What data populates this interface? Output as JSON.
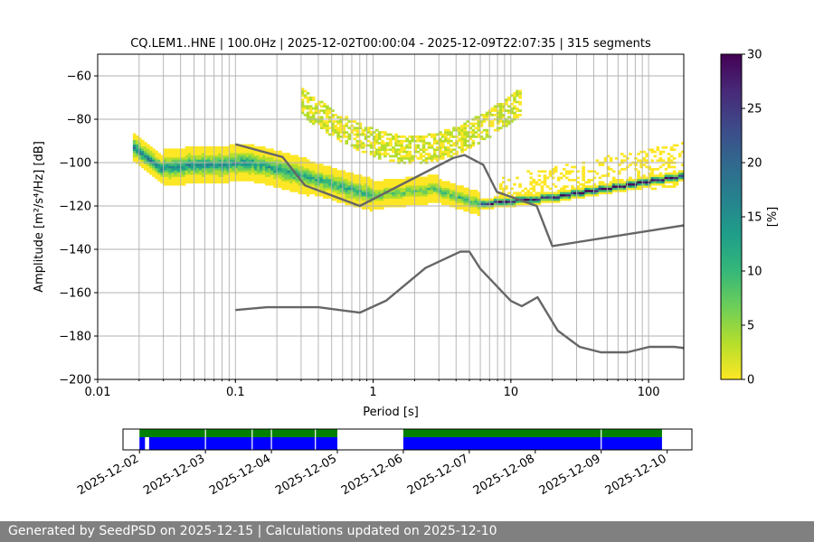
{
  "chart_data": {
    "type": "heatmap",
    "title": "CQ.LEM1..HNE | 100.0Hz | 2025-12-02T00:00:04 - 2025-12-09T22:07:35 | 315 segments",
    "xlabel": "Period [s]",
    "ylabel": "Amplitude [m²/s⁴/Hz] [dB]",
    "xscale": "log",
    "xlim": [
      0.01,
      180
    ],
    "ylim": [
      -200,
      -50
    ],
    "x_ticks": [
      {
        "value": 0.01,
        "label": "0.01"
      },
      {
        "value": 0.1,
        "label": "0.1"
      },
      {
        "value": 1,
        "label": "1"
      },
      {
        "value": 10,
        "label": "10"
      },
      {
        "value": 100,
        "label": "100"
      }
    ],
    "y_ticks": [
      -200,
      -180,
      -160,
      -140,
      -120,
      -100,
      -80,
      -60
    ],
    "grid": true,
    "colorbar": {
      "label": "[%]",
      "range": [
        0,
        30
      ],
      "ticks": [
        0,
        5,
        10,
        15,
        20,
        25,
        30
      ],
      "colors": [
        "#fde725",
        "#b5de2b",
        "#6ece58",
        "#35b779",
        "#1f9e89",
        "#26828e",
        "#31688e",
        "#3e4989",
        "#482878",
        "#440154"
      ]
    },
    "noise_models": [
      {
        "name": "NHNM",
        "color": "#666666",
        "points": [
          [
            0.1,
            -91.5
          ],
          [
            0.22,
            -97.4
          ],
          [
            0.32,
            -110.5
          ],
          [
            0.8,
            -120.0
          ],
          [
            3.8,
            -97.9
          ],
          [
            4.6,
            -96.5
          ],
          [
            6.3,
            -101.0
          ],
          [
            7.9,
            -113.5
          ],
          [
            15.4,
            -120.0
          ],
          [
            20.0,
            -138.5
          ],
          [
            354.8,
            -126.0
          ]
        ]
      },
      {
        "name": "NLNM",
        "color": "#666666",
        "points": [
          [
            0.1,
            -168.0
          ],
          [
            0.17,
            -166.7
          ],
          [
            0.4,
            -166.7
          ],
          [
            0.8,
            -169.2
          ],
          [
            1.24,
            -163.7
          ],
          [
            2.4,
            -148.6
          ],
          [
            4.3,
            -141.1
          ],
          [
            5.0,
            -141.1
          ],
          [
            6.0,
            -149.0
          ],
          [
            10.0,
            -163.8
          ],
          [
            12.0,
            -166.2
          ],
          [
            15.6,
            -162.1
          ],
          [
            21.9,
            -177.5
          ],
          [
            31.6,
            -185.0
          ],
          [
            45.0,
            -187.5
          ],
          [
            70.0,
            -187.5
          ],
          [
            101.0,
            -185.0
          ],
          [
            154.0,
            -185.0
          ],
          [
            328.0,
            -187.5
          ]
        ]
      }
    ],
    "psd_bands": [
      {
        "period": [
          0.018,
          0.03
        ],
        "center": [
          -93,
          -104
        ],
        "half_width": 6,
        "peak_percent": 18
      },
      {
        "period": [
          0.03,
          0.13
        ],
        "center": [
          -102,
          -100
        ],
        "half_width": 8,
        "peak_percent": 15
      },
      {
        "period": [
          0.13,
          0.35
        ],
        "center": [
          -100,
          -107
        ],
        "half_width": 8,
        "peak_percent": 13
      },
      {
        "period": [
          0.35,
          1.0
        ],
        "center": [
          -107,
          -115
        ],
        "half_width": 7,
        "peak_percent": 12
      },
      {
        "period": [
          1.0,
          3.0
        ],
        "center": [
          -115,
          -112
        ],
        "half_width": 6,
        "peak_percent": 8
      },
      {
        "period": [
          3.0,
          6.0
        ],
        "center": [
          -113,
          -119
        ],
        "half_width": 5,
        "peak_percent": 10
      },
      {
        "period": [
          6.0,
          20.0
        ],
        "center": [
          -119,
          -116
        ],
        "half_width": 2,
        "peak_percent": 25
      },
      {
        "period": [
          20.0,
          180.0
        ],
        "center": [
          -116,
          -106
        ],
        "half_width": 2,
        "peak_percent": 28
      }
    ],
    "psd_arc": {
      "period": [
        0.3,
        12.0
      ],
      "peak": -94,
      "half_width": 6,
      "percent": 3
    },
    "psd_scatter_bounds": {
      "period": [
        8.0,
        180.0
      ],
      "top": [
        -107,
        -90
      ],
      "bottom": [
        -120,
        -110
      ],
      "percent": 1
    },
    "data_availability": {
      "x_ticks": [
        "2025-12-02",
        "2025-12-03",
        "2025-12-04",
        "2025-12-05",
        "2025-12-06",
        "2025-12-07",
        "2025-12-08",
        "2025-12-09",
        "2025-12-10"
      ],
      "range": [
        "2025-12-01T18:00",
        "2025-12-10T09:00"
      ],
      "data_color": "#0000ff",
      "coverage_color": "#008000",
      "data_segments": [
        [
          "2025-12-02T00:00",
          "2025-12-02T02:00"
        ],
        [
          "2025-12-02T03:30",
          "2025-12-05T00:00"
        ],
        [
          "2025-12-06T00:00",
          "2025-12-09T22:07"
        ]
      ],
      "coverage_segments": [
        [
          "2025-12-02T00:00",
          "2025-12-05T00:00"
        ],
        [
          "2025-12-06T00:00",
          "2025-12-09T22:07"
        ]
      ],
      "gaps": [
        "2025-12-03T00:00",
        "2025-12-03T17:00",
        "2025-12-04T00:00",
        "2025-12-04T16:00",
        "2025-12-09T00:00"
      ]
    }
  },
  "footer": "Generated by SeedPSD on 2025-12-15 | Calculations updated on 2025-12-10"
}
